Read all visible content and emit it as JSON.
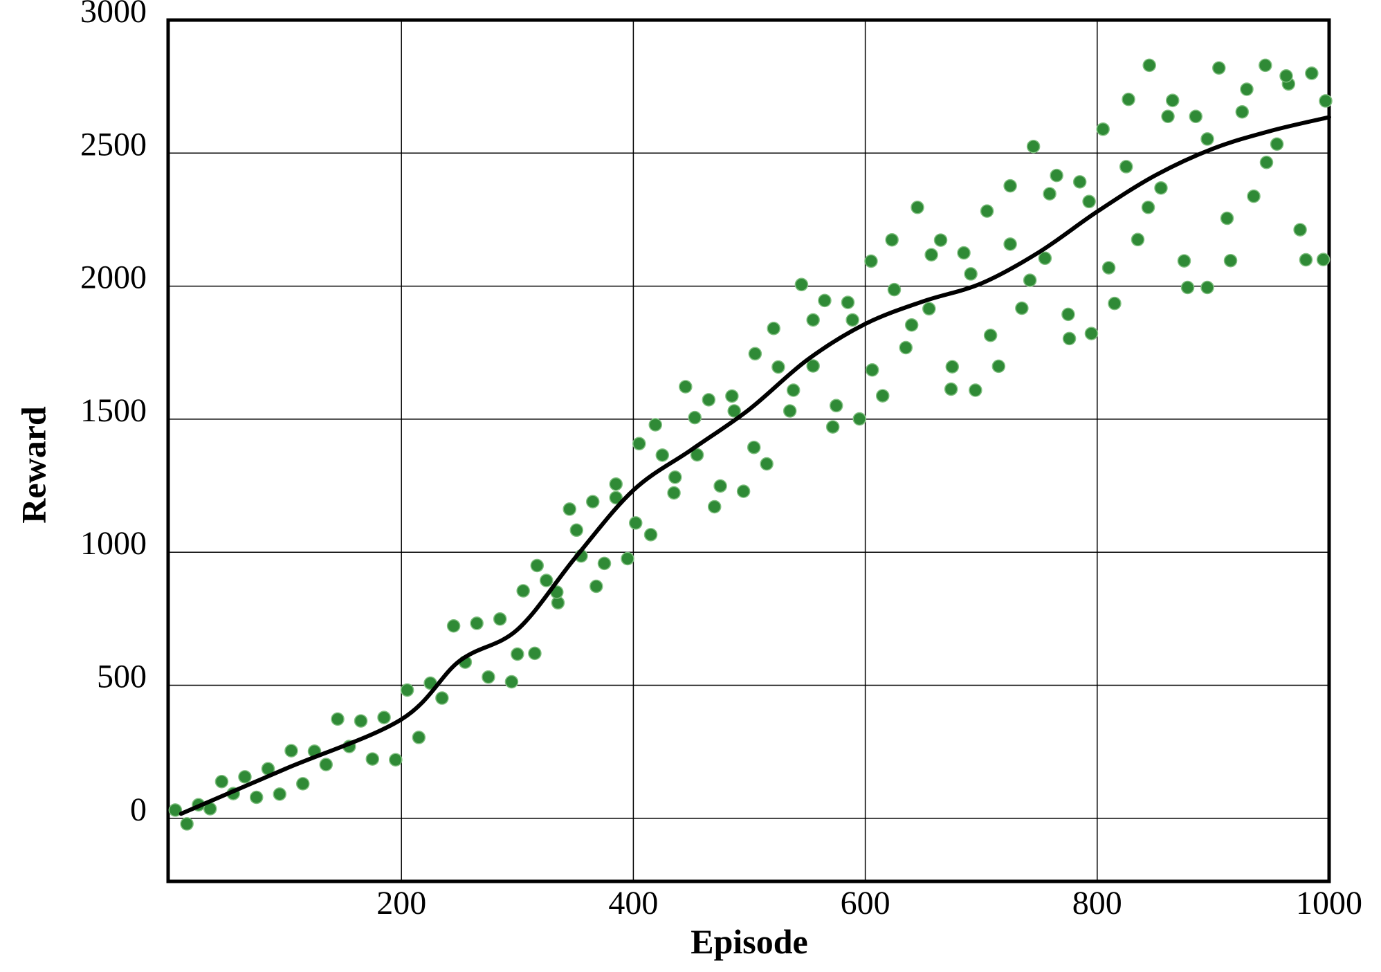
{
  "chart_data": {
    "type": "scatter",
    "xlabel": "Episode",
    "ylabel": "Reward",
    "xlim": [
      0,
      1000
    ],
    "ylim": [
      -237,
      3000
    ],
    "xticks": [
      200,
      400,
      600,
      800,
      1000
    ],
    "yticks": [
      0,
      500,
      1000,
      1500,
      2000,
      2500,
      3000
    ],
    "grid": true,
    "series": [
      {
        "type": "scatter",
        "color": "#2f8a36",
        "x": [
          5,
          15,
          25,
          35,
          45,
          55,
          65,
          75,
          85,
          95,
          105,
          115,
          125,
          135,
          145,
          155,
          165,
          175,
          185,
          195,
          205,
          215,
          225,
          235,
          245,
          255,
          265,
          275,
          285,
          295,
          305,
          315,
          325,
          335,
          345,
          355,
          365,
          375,
          385,
          395,
          405,
          415,
          425,
          435,
          445,
          455,
          465,
          475,
          485,
          495,
          505,
          515,
          525,
          535,
          545,
          555,
          565,
          575,
          585,
          595,
          605,
          615,
          625,
          635,
          645,
          655,
          665,
          675,
          685,
          695,
          705,
          715,
          725,
          735,
          745,
          755,
          765,
          775,
          785,
          795,
          805,
          815,
          825,
          835,
          845,
          855,
          865,
          875,
          885,
          895,
          905,
          915,
          925,
          935,
          945,
          955,
          965,
          975,
          985,
          995,
          300,
          317,
          334,
          351,
          368,
          385,
          402,
          419,
          436,
          453,
          470,
          487,
          504,
          521,
          538,
          555,
          572,
          589,
          606,
          623,
          640,
          657,
          674,
          691,
          708,
          725,
          742,
          759,
          776,
          793,
          810,
          827,
          844,
          861,
          878,
          895,
          912,
          929,
          946,
          963,
          980,
          997
        ],
        "values": [
          31,
          -21,
          51,
          36,
          138,
          93,
          156,
          79,
          186,
          91,
          254,
          130,
          252,
          202,
          373,
          270,
          366,
          223,
          379,
          220,
          482,
          304,
          508,
          452,
          723,
          587,
          733,
          531,
          749,
          513,
          855,
          620,
          894,
          810,
          1162,
          986,
          1190,
          958,
          1256,
          976,
          1408,
          1066,
          1365,
          1223,
          1622,
          1366,
          1573,
          1249,
          1587,
          1229,
          1746,
          1332,
          1696,
          1531,
          2006,
          1700,
          1946,
          1551,
          1939,
          1501,
          2094,
          1588,
          1987,
          1769,
          2296,
          1915,
          2173,
          1697,
          2125,
          1609,
          2282,
          1699,
          2158,
          1917,
          2525,
          2105,
          2416,
          1894,
          2392,
          1822,
          2590,
          1935,
          2449,
          2175,
          2830,
          2369,
          2698,
          2095,
          2638,
          1995,
          2820,
          2096,
          2655,
          2338,
          2830,
          2534,
          2760,
          2212,
          2800,
          2100,
          617,
          950,
          850,
          1083,
          872,
          1205,
          1110,
          1479,
          1282,
          1506,
          1171,
          1531,
          1394,
          1841,
          1609,
          1873,
          1471,
          1873,
          1685,
          2174,
          1854,
          2118,
          1613,
          2046,
          1815,
          2377,
          2022,
          2347,
          1803,
          2318,
          2069,
          2702,
          2296,
          2638,
          1995,
          2553,
          2255,
          2740,
          2465,
          2790,
          2099,
          2696
        ]
      },
      {
        "type": "line",
        "color": "#000000",
        "x": [
          10,
          100,
          200,
          250,
          300,
          350,
          400,
          450,
          500,
          550,
          600,
          650,
          700,
          750,
          800,
          850,
          900,
          950,
          1000
        ],
        "values": [
          17,
          186,
          372,
          591,
          709,
          980,
          1233,
          1385,
          1537,
          1723,
          1858,
          1943,
          2010,
          2128,
          2280,
          2416,
          2517,
          2584,
          2635
        ]
      }
    ]
  }
}
